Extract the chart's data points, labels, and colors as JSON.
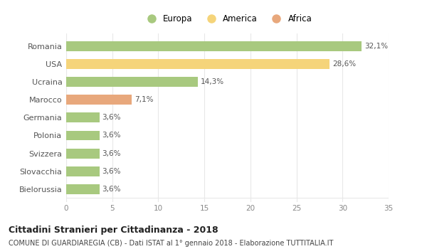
{
  "categories": [
    "Romania",
    "USA",
    "Ucraina",
    "Marocco",
    "Germania",
    "Polonia",
    "Svizzera",
    "Slovacchia",
    "Bielorussia"
  ],
  "values": [
    32.1,
    28.6,
    14.3,
    7.1,
    3.6,
    3.6,
    3.6,
    3.6,
    3.6
  ],
  "labels": [
    "32,1%",
    "28,6%",
    "14,3%",
    "7,1%",
    "3,6%",
    "3,6%",
    "3,6%",
    "3,6%",
    "3,6%"
  ],
  "colors": [
    "#a8c97f",
    "#f5d47a",
    "#a8c97f",
    "#e8a87c",
    "#a8c97f",
    "#a8c97f",
    "#a8c97f",
    "#a8c97f",
    "#a8c97f"
  ],
  "legend": [
    {
      "label": "Europa",
      "color": "#a8c97f"
    },
    {
      "label": "America",
      "color": "#f5d47a"
    },
    {
      "label": "Africa",
      "color": "#e8a87c"
    }
  ],
  "xlim": [
    0,
    35
  ],
  "xticks": [
    0,
    5,
    10,
    15,
    20,
    25,
    30,
    35
  ],
  "title": "Cittadini Stranieri per Cittadinanza - 2018",
  "subtitle": "COMUNE DI GUARDIAREGIA (CB) - Dati ISTAT al 1° gennaio 2018 - Elaborazione TUTTITALIA.IT",
  "background_color": "#ffffff",
  "grid_color": "#e8e8e8",
  "bar_height": 0.55,
  "label_fontsize": 7.5,
  "ytick_fontsize": 8,
  "xtick_fontsize": 7.5
}
